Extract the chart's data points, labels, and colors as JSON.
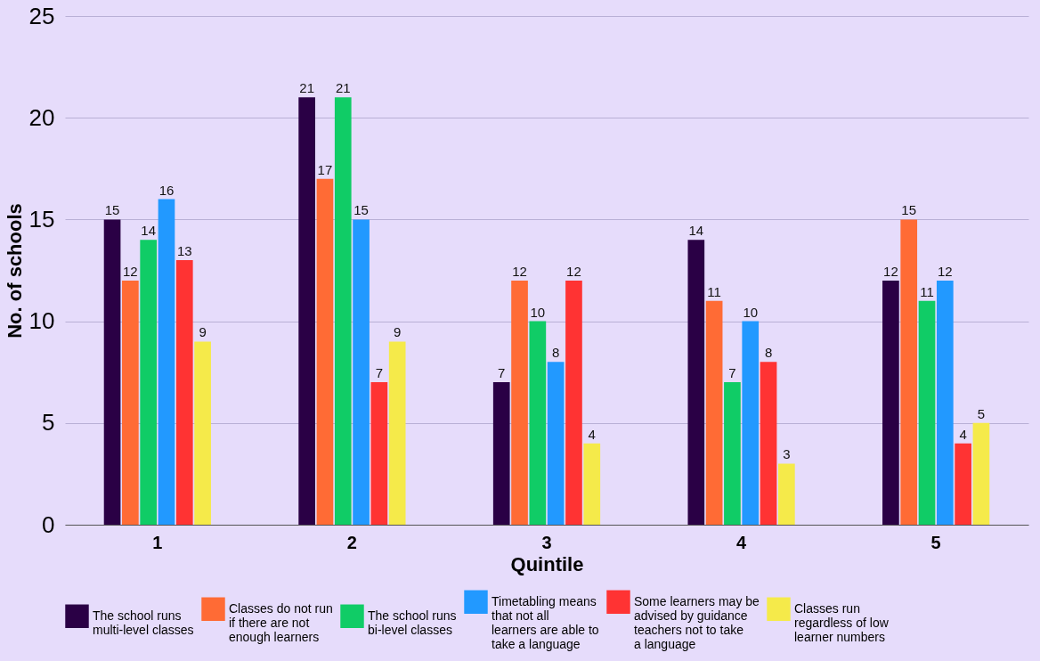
{
  "chart_data": {
    "type": "bar",
    "xlabel": "Quintile",
    "ylabel": "No. of schools",
    "categories": [
      "1",
      "2",
      "3",
      "4",
      "5"
    ],
    "series": [
      {
        "name": "The school runs multi-level classes",
        "color": "#2a0045",
        "values": [
          15,
          21,
          7,
          14,
          12
        ]
      },
      {
        "name": "Classes do not run if there are not enough learners",
        "color": "#ff6b35",
        "values": [
          12,
          17,
          12,
          11,
          15
        ]
      },
      {
        "name": "The school runs bi-level classes",
        "color": "#10cc66",
        "values": [
          14,
          21,
          10,
          7,
          11
        ]
      },
      {
        "name": "Timetabling means that not all learners are able to take a language",
        "color": "#2299ff",
        "values": [
          16,
          15,
          8,
          10,
          12
        ]
      },
      {
        "name": "Some learners may be advised by guidance teachers not to take a language",
        "color": "#ff3333",
        "values": [
          13,
          7,
          12,
          8,
          4
        ]
      },
      {
        "name": "Classes run regardless of low learner numbers",
        "color": "#f5ea4a",
        "values": [
          9,
          9,
          4,
          3,
          5
        ]
      }
    ],
    "ylim": [
      0,
      25
    ],
    "yticks": [
      0,
      5,
      10,
      15,
      20,
      25
    ],
    "grid": "y",
    "legend": "bottom",
    "data_labels": true
  }
}
